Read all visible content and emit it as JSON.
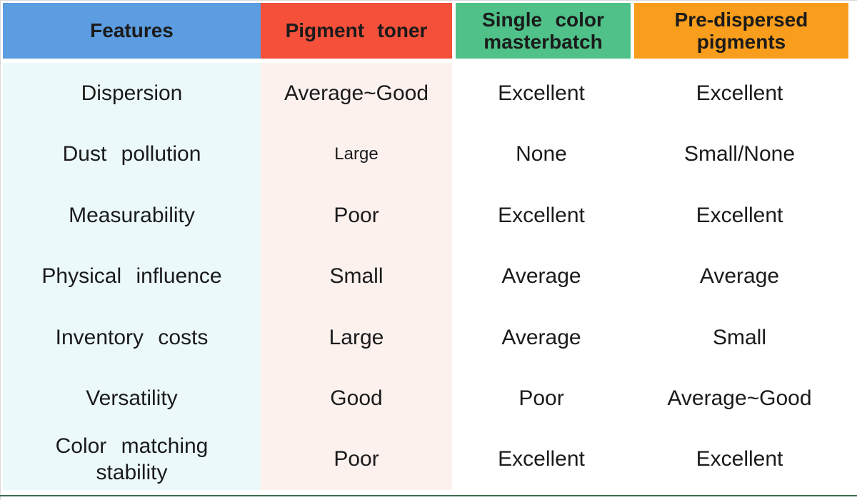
{
  "table": {
    "columns": [
      {
        "key": "feature",
        "label": "Features",
        "header_bg": "#5c9ce0",
        "body_bg": "#ebf9fb"
      },
      {
        "key": "pigment",
        "label": "Pigment toner",
        "header_bg": "#f5503a",
        "body_bg": "#fdf1ee"
      },
      {
        "key": "masterbatch",
        "label": "Single color\nmasterbatch",
        "header_bg": "#4fc189",
        "body_bg": "#ffffff"
      },
      {
        "key": "predispersed",
        "label": "Pre-dispersed\npigments",
        "header_bg": "#f99d1c",
        "body_bg": "#ffffff"
      }
    ],
    "rows": [
      {
        "feature": "Dispersion",
        "pigment": "Average~Good",
        "masterbatch": "Excellent",
        "predispersed": "Excellent"
      },
      {
        "feature": "Dust pollution",
        "pigment": "Large",
        "masterbatch": "None",
        "predispersed": "Small/None"
      },
      {
        "feature": "Measurability",
        "pigment": "Poor",
        "masterbatch": "Excellent",
        "predispersed": "Excellent"
      },
      {
        "feature": "Physical influence",
        "pigment": "Small",
        "masterbatch": "Average",
        "predispersed": "Average"
      },
      {
        "feature": "Inventory costs",
        "pigment": "Large",
        "masterbatch": "Average",
        "predispersed": "Small"
      },
      {
        "feature": "Versatility",
        "pigment": "Good",
        "masterbatch": "Poor",
        "predispersed": "Average~Good"
      },
      {
        "feature": "Color matching\nstability",
        "pigment": "Poor",
        "masterbatch": "Excellent",
        "predispersed": "Excellent"
      }
    ],
    "text_color": "#1b1b1b",
    "bottom_rule_color": "#3e6e50"
  }
}
